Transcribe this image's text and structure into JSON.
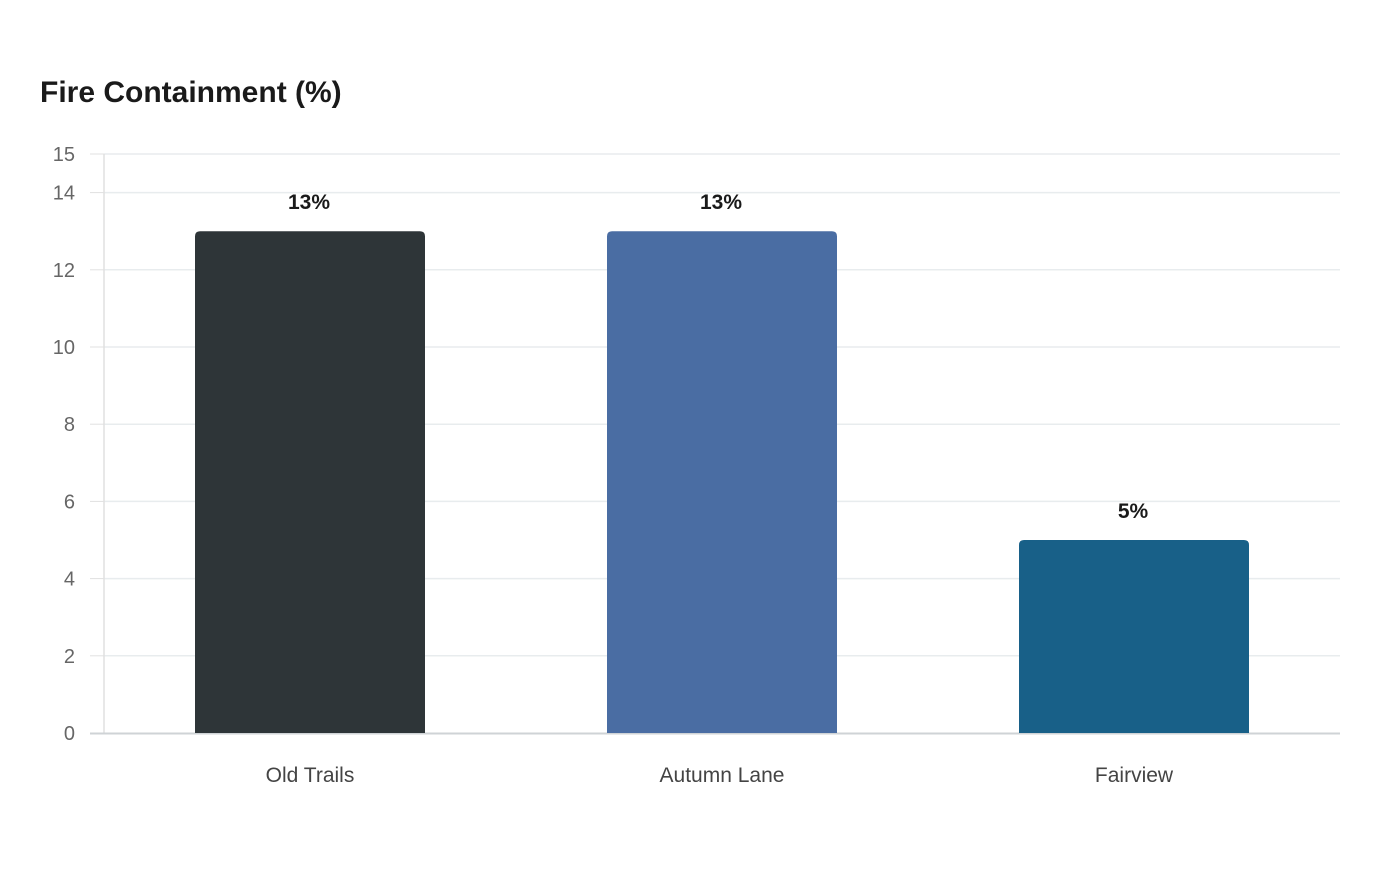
{
  "chart_data": {
    "type": "bar",
    "title": "Fire Containment (%)",
    "xlabel": "",
    "ylabel": "",
    "categories": [
      "Old Trails",
      "Autumn Lane",
      "Fairview"
    ],
    "values": [
      13,
      13,
      5
    ],
    "data_labels": [
      "13%",
      "13%",
      "5%"
    ],
    "colors": [
      "#2e3538",
      "#4a6da3",
      "#186088"
    ],
    "ylim": [
      0,
      15
    ],
    "yticks": [
      0,
      2,
      4,
      6,
      8,
      10,
      12,
      14,
      15
    ],
    "grid": true,
    "legend": "none"
  }
}
